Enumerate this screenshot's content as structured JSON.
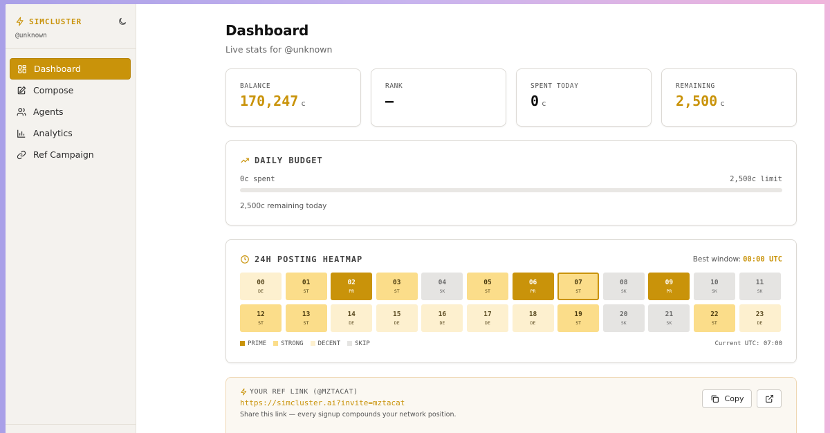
{
  "sidebar": {
    "brand": "SIMCLUSTER",
    "handle": "@unknown",
    "items": [
      {
        "label": "Dashboard",
        "icon": "dashboard-icon",
        "active": true
      },
      {
        "label": "Compose",
        "icon": "compose-icon"
      },
      {
        "label": "Agents",
        "icon": "users-icon"
      },
      {
        "label": "Analytics",
        "icon": "bar-chart-icon"
      },
      {
        "label": "Ref Campaign",
        "icon": "link-icon"
      }
    ]
  },
  "header": {
    "title": "Dashboard",
    "subtitle": "Live stats for @unknown"
  },
  "stats": [
    {
      "label": "BALANCE",
      "value": "170,247",
      "unit": "c",
      "accent": true
    },
    {
      "label": "RANK",
      "value": "—",
      "unit": "",
      "accent": false
    },
    {
      "label": "SPENT TODAY",
      "value": "0",
      "unit": "c",
      "accent": false
    },
    {
      "label": "REMAINING",
      "value": "2,500",
      "unit": "c",
      "accent": true
    }
  ],
  "budget": {
    "title": "DAILY BUDGET",
    "spent_label": "0c spent",
    "limit_label": "2,500c limit",
    "progress": 0,
    "note": "2,500c remaining today"
  },
  "heatmap": {
    "title": "24H POSTING HEATMAP",
    "best_window_label": "Best window:",
    "best_window_value": "00:00 UTC",
    "current_hour": "07",
    "current_utc": "Current UTC: 07:00",
    "cells": [
      {
        "hour": "00",
        "tag": "DE"
      },
      {
        "hour": "01",
        "tag": "ST"
      },
      {
        "hour": "02",
        "tag": "PR"
      },
      {
        "hour": "03",
        "tag": "ST"
      },
      {
        "hour": "04",
        "tag": "SK"
      },
      {
        "hour": "05",
        "tag": "ST"
      },
      {
        "hour": "06",
        "tag": "PR"
      },
      {
        "hour": "07",
        "tag": "ST"
      },
      {
        "hour": "08",
        "tag": "SK"
      },
      {
        "hour": "09",
        "tag": "PR"
      },
      {
        "hour": "10",
        "tag": "SK"
      },
      {
        "hour": "11",
        "tag": "SK"
      },
      {
        "hour": "12",
        "tag": "ST"
      },
      {
        "hour": "13",
        "tag": "ST"
      },
      {
        "hour": "14",
        "tag": "DE"
      },
      {
        "hour": "15",
        "tag": "DE"
      },
      {
        "hour": "16",
        "tag": "DE"
      },
      {
        "hour": "17",
        "tag": "DE"
      },
      {
        "hour": "18",
        "tag": "DE"
      },
      {
        "hour": "19",
        "tag": "ST"
      },
      {
        "hour": "20",
        "tag": "SK"
      },
      {
        "hour": "21",
        "tag": "SK"
      },
      {
        "hour": "22",
        "tag": "ST"
      },
      {
        "hour": "23",
        "tag": "DE"
      }
    ],
    "legend": [
      {
        "label": "PRIME",
        "color": "#c9930a"
      },
      {
        "label": "STRONG",
        "color": "#fbdd8a"
      },
      {
        "label": "DECENT",
        "color": "#fdf0cf"
      },
      {
        "label": "SKIP",
        "color": "#e5e4e2"
      }
    ]
  },
  "ref": {
    "label": "YOUR REF LINK (@MZTACAT)",
    "link": "https://simcluster.ai?invite=mztacat",
    "note": "Share this link — every signup compounds your network position.",
    "copy_label": "Copy"
  },
  "colors": {
    "accent": "#c9930a"
  }
}
